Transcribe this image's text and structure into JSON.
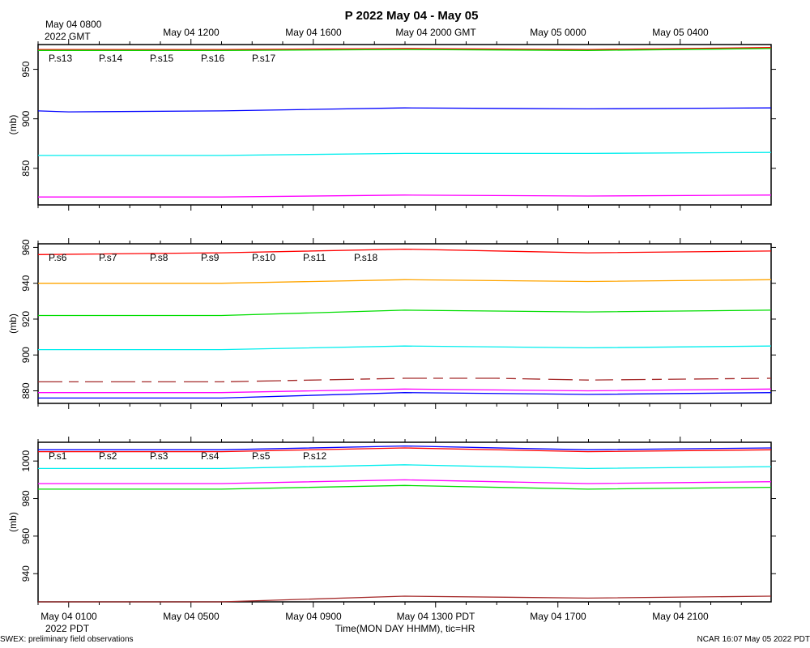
{
  "title": "P 2022 May 04 - May 05",
  "top_axis": {
    "labels": [
      "May 04 0800",
      "May 04 1200",
      "May 04 1600",
      "May 04 2000 GMT",
      "May 05 0000",
      "May 05 0400"
    ],
    "sublabel": "2022 GMT"
  },
  "bottom_axis": {
    "labels": [
      "May 04 0100",
      "May 04 0500",
      "May 04 0900",
      "May 04 1300 PDT",
      "May 04 1700",
      "May 04 2100"
    ],
    "sublabel": "2022 PDT",
    "title": "Time(MON DAY HHMM), tic=HR"
  },
  "footer": {
    "left": "SWEX: preliminary field observations",
    "right": "NCAR 16:07 May 05 2022 PDT"
  },
  "chart_data": [
    {
      "type": "line",
      "ylabel": "(mb)",
      "ylim": [
        813,
        975
      ],
      "yticks": [
        850,
        900,
        950
      ],
      "x_hours_range": [
        0,
        24
      ],
      "grid": false,
      "legend_placement": "top-left",
      "series": [
        {
          "name": "P.s13",
          "color": "#ff0000",
          "x": [
            0,
            6,
            12,
            18,
            24
          ],
          "y": [
            970,
            970,
            971,
            970,
            972
          ]
        },
        {
          "name": "P.s14",
          "color": "#00dd00",
          "x": [
            0,
            6,
            12,
            18,
            24
          ],
          "y": [
            969,
            969,
            970,
            969,
            971
          ]
        },
        {
          "name": "P.s15",
          "color": "#0000ff",
          "x": [
            0,
            1,
            6,
            12,
            18,
            24
          ],
          "y": [
            908,
            907,
            908,
            911,
            910,
            911
          ]
        },
        {
          "name": "P.s16",
          "color": "#00eeee",
          "x": [
            0,
            6,
            12,
            18,
            24
          ],
          "y": [
            863,
            863,
            865,
            865,
            866
          ]
        },
        {
          "name": "P.s17",
          "color": "#ff00ff",
          "x": [
            0,
            6,
            12,
            18,
            24
          ],
          "y": [
            821,
            821,
            823,
            822,
            823
          ]
        }
      ]
    },
    {
      "type": "line",
      "ylabel": "(mb)",
      "ylim": [
        873,
        962
      ],
      "yticks": [
        880,
        900,
        920,
        940,
        960
      ],
      "x_hours_range": [
        0,
        24
      ],
      "grid": false,
      "legend_placement": "top-left",
      "series": [
        {
          "name": "P.s6",
          "color": "#ff0000",
          "x": [
            0,
            6,
            12,
            18,
            24
          ],
          "y": [
            956,
            957,
            959,
            957,
            958
          ]
        },
        {
          "name": "P.s7",
          "color": "#00dd00",
          "x": [
            0,
            6,
            12,
            18,
            24
          ],
          "y": [
            922,
            922,
            925,
            924,
            925
          ]
        },
        {
          "name": "P.s8",
          "color": "#0000ff",
          "x": [
            0,
            6,
            12,
            18,
            24
          ],
          "y": [
            876,
            876,
            879,
            878,
            879
          ]
        },
        {
          "name": "P.s9",
          "color": "#00eeee",
          "x": [
            0,
            6,
            12,
            18,
            24
          ],
          "y": [
            903,
            903,
            905,
            904,
            905
          ]
        },
        {
          "name": "P.s10",
          "color": "#ff00ff",
          "x": [
            0,
            6,
            12,
            18,
            24
          ],
          "y": [
            879,
            879,
            881,
            880,
            881
          ]
        },
        {
          "name": "P.s11",
          "color": "#a52a2a",
          "dashed": true,
          "x": [
            0,
            6,
            12,
            15,
            18,
            24
          ],
          "y": [
            885,
            885,
            887,
            887,
            886,
            887
          ]
        },
        {
          "name": "P.s18",
          "color": "#ffa500",
          "x": [
            0,
            6,
            12,
            18,
            24
          ],
          "y": [
            940,
            940,
            942,
            941,
            942
          ]
        }
      ]
    },
    {
      "type": "line",
      "ylabel": "(mb)",
      "ylim": [
        925,
        1010
      ],
      "yticks": [
        940,
        960,
        980,
        1000
      ],
      "x_hours_range": [
        0,
        24
      ],
      "grid": false,
      "legend_placement": "top-left",
      "series": [
        {
          "name": "P.s1",
          "color": "#ff0000",
          "x": [
            0,
            6,
            12,
            18,
            24
          ],
          "y": [
            1005,
            1005,
            1007,
            1005,
            1006
          ]
        },
        {
          "name": "P.s2",
          "color": "#00dd00",
          "x": [
            0,
            6,
            12,
            18,
            24
          ],
          "y": [
            985,
            985,
            987,
            985,
            986
          ]
        },
        {
          "name": "P.s3",
          "color": "#0000ff",
          "x": [
            0,
            6,
            12,
            18,
            24
          ],
          "y": [
            1006,
            1006,
            1008,
            1006,
            1007
          ]
        },
        {
          "name": "P.s4",
          "color": "#00eeee",
          "x": [
            0,
            6,
            12,
            18,
            24
          ],
          "y": [
            996,
            996,
            998,
            996,
            997
          ]
        },
        {
          "name": "P.s5",
          "color": "#ff00ff",
          "x": [
            0,
            6,
            12,
            18,
            24
          ],
          "y": [
            988,
            988,
            990,
            988,
            989
          ]
        },
        {
          "name": "P.s12",
          "color": "#a52a2a",
          "x": [
            0,
            6,
            12,
            18,
            24
          ],
          "y": [
            925,
            925,
            928,
            927,
            928
          ]
        }
      ]
    }
  ]
}
